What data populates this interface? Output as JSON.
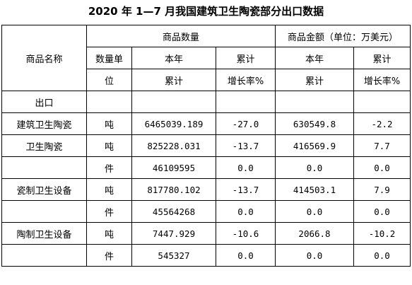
{
  "title": "2020 年 1—7 月我国建筑卫生陶瓷部分出口数据",
  "header": {
    "product_name": "商品名称",
    "quantity_group": "商品数量",
    "amount_group": "商品金额（单位：万美元）",
    "unit_line1": "数量单",
    "unit_line2": "位",
    "ytd_line1": "本年",
    "ytd_line2": "累计",
    "growth_line1": "累计",
    "growth_line2": "增长率%",
    "amt_ytd_line1": "本年",
    "amt_ytd_line2": "累计",
    "amt_growth_line1": "累计",
    "amt_growth_line2": "增长率%"
  },
  "section_label": "出口",
  "rows": [
    {
      "name": "建筑卫生陶瓷",
      "unit": "吨",
      "qty": "6465039.189",
      "qty_growth": "-27.0",
      "amt": "630549.8",
      "amt_growth": "-2.2"
    },
    {
      "name": "卫生陶瓷",
      "unit": "吨",
      "qty": "825228.031",
      "qty_growth": "-13.7",
      "amt": "416569.9",
      "amt_growth": "7.7"
    },
    {
      "name": "",
      "unit": "件",
      "qty": "46109595",
      "qty_growth": "0.0",
      "amt": "0.0",
      "amt_growth": "0.0"
    },
    {
      "name": "瓷制卫生设备",
      "unit": "吨",
      "qty": "817780.102",
      "qty_growth": "-13.7",
      "amt": "414503.1",
      "amt_growth": "7.9"
    },
    {
      "name": "",
      "unit": "件",
      "qty": "45564268",
      "qty_growth": "0.0",
      "amt": "0.0",
      "amt_growth": "0.0"
    },
    {
      "name": "陶制卫生设备",
      "unit": "吨",
      "qty": "7447.929",
      "qty_growth": "-10.6",
      "amt": "2066.8",
      "amt_growth": "-10.2"
    },
    {
      "name": "",
      "unit": "件",
      "qty": "545327",
      "qty_growth": "0.0",
      "amt": "0.0",
      "amt_growth": "0.0"
    }
  ]
}
